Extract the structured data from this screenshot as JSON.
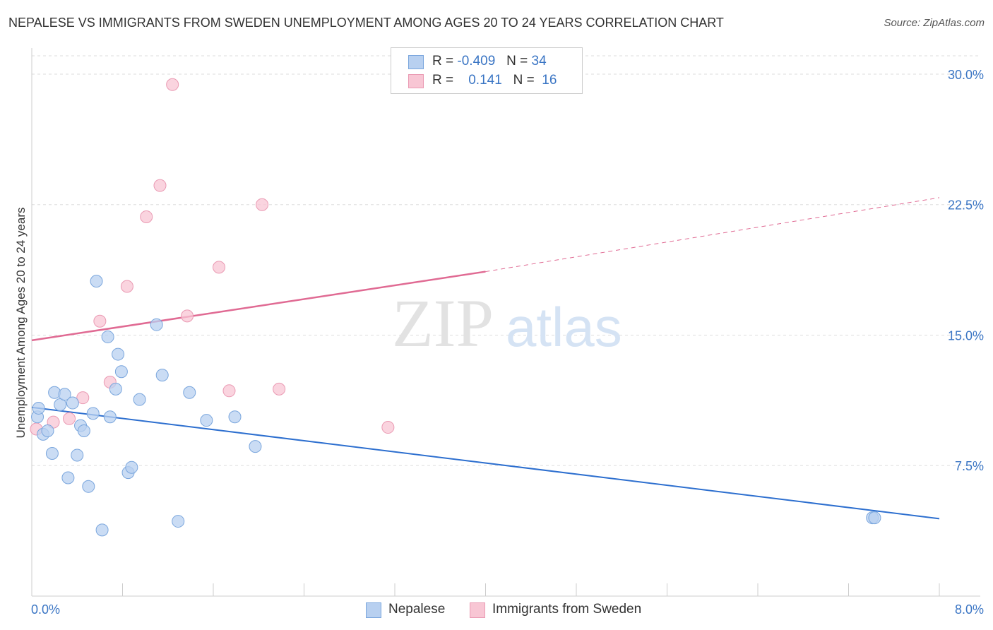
{
  "title": "NEPALESE VS IMMIGRANTS FROM SWEDEN UNEMPLOYMENT AMONG AGES 20 TO 24 YEARS CORRELATION CHART",
  "source": "Source: ZipAtlas.com",
  "watermark": {
    "zip": "ZIP",
    "atlas": "atlas"
  },
  "legend": {
    "r_label": "R =",
    "n_label": "N =",
    "rows": [
      {
        "r": "-0.409",
        "n": "34"
      },
      {
        "r": "0.141",
        "n": "16"
      }
    ]
  },
  "colors": {
    "nepalese_fill": "#b8d0f0",
    "nepalese_stroke": "#7aa6dd",
    "nepalese_line": "#2d6fcf",
    "sweden_fill": "#f8c6d4",
    "sweden_stroke": "#ea9ab3",
    "sweden_line": "#e06a93",
    "tick_label": "#3a75c4"
  },
  "chart_data": {
    "type": "scatter",
    "title": "NEPALESE VS IMMIGRANTS FROM SWEDEN UNEMPLOYMENT AMONG AGES 20 TO 24 YEARS CORRELATION CHART",
    "xlabel": "",
    "ylabel": "Unemployment Among Ages 20 to 24 years",
    "xlim": [
      0,
      8
    ],
    "ylim": [
      0,
      31.5
    ],
    "x_tick_labels": [
      "0.0%",
      "8.0%"
    ],
    "y_ticks": [
      7.5,
      15,
      22.5,
      30
    ],
    "y_tick_labels": [
      "7.5%",
      "15.0%",
      "22.5%",
      "30.0%"
    ],
    "grid": true,
    "series": [
      {
        "name": "Nepalese",
        "points": [
          [
            0.05,
            10.3
          ],
          [
            0.06,
            10.8
          ],
          [
            0.1,
            9.3
          ],
          [
            0.14,
            9.5
          ],
          [
            0.18,
            8.2
          ],
          [
            0.2,
            11.7
          ],
          [
            0.25,
            11.0
          ],
          [
            0.29,
            11.6
          ],
          [
            0.32,
            6.8
          ],
          [
            0.36,
            11.1
          ],
          [
            0.4,
            8.1
          ],
          [
            0.43,
            9.8
          ],
          [
            0.46,
            9.5
          ],
          [
            0.5,
            6.3
          ],
          [
            0.54,
            10.5
          ],
          [
            0.57,
            18.1
          ],
          [
            0.62,
            3.8
          ],
          [
            0.67,
            14.9
          ],
          [
            0.69,
            10.3
          ],
          [
            0.74,
            11.9
          ],
          [
            0.76,
            13.9
          ],
          [
            0.79,
            12.9
          ],
          [
            0.85,
            7.1
          ],
          [
            0.88,
            7.4
          ],
          [
            0.95,
            11.3
          ],
          [
            1.1,
            15.6
          ],
          [
            1.15,
            12.7
          ],
          [
            1.29,
            4.3
          ],
          [
            1.39,
            11.7
          ],
          [
            1.54,
            10.1
          ],
          [
            1.79,
            10.3
          ],
          [
            1.97,
            8.6
          ],
          [
            7.41,
            4.5
          ],
          [
            7.43,
            4.5
          ]
        ],
        "trend": {
          "x0": 0.0,
          "y0": 10.85,
          "x1": 8.0,
          "y1": 4.45
        }
      },
      {
        "name": "Immigrants from Sweden",
        "points": [
          [
            0.04,
            9.6
          ],
          [
            0.19,
            10.0
          ],
          [
            0.33,
            10.2
          ],
          [
            0.45,
            11.4
          ],
          [
            0.6,
            15.8
          ],
          [
            0.69,
            12.3
          ],
          [
            0.84,
            17.8
          ],
          [
            1.01,
            21.8
          ],
          [
            1.13,
            23.6
          ],
          [
            1.24,
            29.4
          ],
          [
            1.37,
            16.1
          ],
          [
            1.65,
            18.9
          ],
          [
            1.74,
            11.8
          ],
          [
            2.03,
            22.5
          ],
          [
            2.18,
            11.9
          ],
          [
            3.14,
            9.7
          ]
        ],
        "trend_solid": {
          "x0": 0.0,
          "y0": 14.7,
          "x1": 4.0,
          "y1": 18.65
        },
        "trend_dashed": {
          "x0": 4.0,
          "y0": 18.65,
          "x1": 8.0,
          "y1": 22.9
        }
      }
    ],
    "legend_position": "top-center"
  }
}
